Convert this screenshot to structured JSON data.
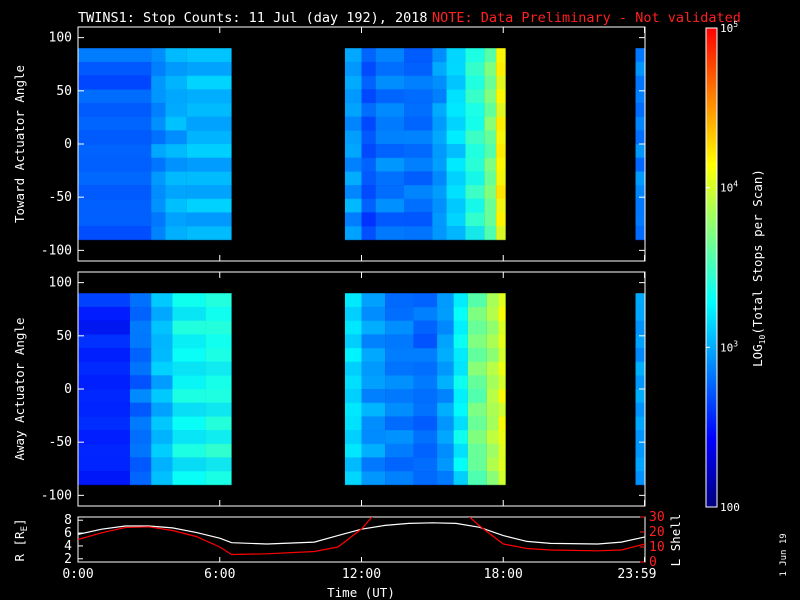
{
  "header": {
    "title": "TWINS1: Stop Counts: 11 Jul (day 192), 2018",
    "note": "NOTE: Data Preliminary - Not validated"
  },
  "colorbar": {
    "label": "LOG10(Total Stops per Scan)",
    "label_prefix": "LOG",
    "label_sub": "10",
    "label_suffix": "(Total Stops per Scan)",
    "ticks": [
      "100",
      "10^3",
      "10^4",
      "10^5"
    ],
    "tick_values": [
      100,
      1000,
      10000,
      100000
    ],
    "range": [
      100,
      100000
    ],
    "scale": "log",
    "colors": [
      "#00007f",
      "#0000ff",
      "#0080ff",
      "#00ffff",
      "#80ff80",
      "#ffff00",
      "#ff8000",
      "#ff0000"
    ]
  },
  "date_stamp": "1 Jun 19",
  "chart_data": [
    {
      "type": "heatmap",
      "ylabel": "Toward Actuator Angle",
      "ylim": [
        -110,
        110
      ],
      "yticks": [
        "100",
        "50",
        "0",
        "-50",
        "-100"
      ],
      "ytick_values": [
        100,
        50,
        0,
        -50,
        -100
      ],
      "xlim": [
        0,
        24
      ],
      "coverage": [
        [
          0,
          6.5
        ],
        [
          11.3,
          18.1
        ],
        [
          23.6,
          24
        ]
      ],
      "angle_range": [
        -90,
        90
      ],
      "columns": [
        {
          "t0": 0.0,
          "t1": 3.1,
          "v": 2.8
        },
        {
          "t0": 3.1,
          "t1": 3.7,
          "v": 2.95
        },
        {
          "t0": 3.7,
          "t1": 4.6,
          "v": 3.05
        },
        {
          "t0": 4.6,
          "t1": 6.5,
          "v": 3.1
        },
        {
          "t0": 11.3,
          "t1": 12.0,
          "v": 3.0
        },
        {
          "t0": 12.0,
          "t1": 12.6,
          "v": 2.75
        },
        {
          "t0": 12.6,
          "t1": 13.8,
          "v": 2.9
        },
        {
          "t0": 13.8,
          "t1": 15.0,
          "v": 2.85
        },
        {
          "t0": 15.0,
          "t1": 15.6,
          "v": 3.0
        },
        {
          "t0": 15.6,
          "t1": 16.4,
          "v": 3.2
        },
        {
          "t0": 16.4,
          "t1": 17.2,
          "v": 3.45
        },
        {
          "t0": 17.2,
          "t1": 17.7,
          "v": 3.7
        },
        {
          "t0": 17.7,
          "t1": 18.1,
          "v": 4.2
        },
        {
          "t0": 23.6,
          "t1": 24.0,
          "v": 2.9
        }
      ]
    },
    {
      "type": "heatmap",
      "ylabel": "Away Actuator Angle",
      "ylim": [
        -110,
        110
      ],
      "yticks": [
        "100",
        "50",
        "0",
        "-50",
        "-100"
      ],
      "ytick_values": [
        100,
        50,
        0,
        -50,
        -100
      ],
      "xlim": [
        0,
        24
      ],
      "coverage": [
        [
          0,
          6.5
        ],
        [
          11.3,
          18.1
        ],
        [
          23.6,
          24
        ]
      ],
      "angle_range": [
        -90,
        90
      ],
      "columns": [
        {
          "t0": 0.0,
          "t1": 2.2,
          "v": 2.6
        },
        {
          "t0": 2.2,
          "t1": 3.1,
          "v": 2.85
        },
        {
          "t0": 3.1,
          "t1": 4.0,
          "v": 3.1
        },
        {
          "t0": 4.0,
          "t1": 5.4,
          "v": 3.35
        },
        {
          "t0": 5.4,
          "t1": 6.5,
          "v": 3.4
        },
        {
          "t0": 11.3,
          "t1": 12.0,
          "v": 3.2
        },
        {
          "t0": 12.0,
          "t1": 13.0,
          "v": 3.0
        },
        {
          "t0": 13.0,
          "t1": 14.2,
          "v": 2.9
        },
        {
          "t0": 14.2,
          "t1": 15.2,
          "v": 2.85
        },
        {
          "t0": 15.2,
          "t1": 15.9,
          "v": 3.0
        },
        {
          "t0": 15.9,
          "t1": 16.5,
          "v": 3.3
        },
        {
          "t0": 16.5,
          "t1": 17.3,
          "v": 3.7
        },
        {
          "t0": 17.3,
          "t1": 17.8,
          "v": 3.9
        },
        {
          "t0": 17.8,
          "t1": 18.1,
          "v": 4.1
        },
        {
          "t0": 23.6,
          "t1": 24.0,
          "v": 3.0
        }
      ]
    },
    {
      "type": "line",
      "xlabel": "Time (UT)",
      "xticks": [
        "0:00",
        "6:00",
        "12:00",
        "18:00",
        "23:59"
      ],
      "xtick_values": [
        0,
        6,
        12,
        18,
        23.98
      ],
      "xlim": [
        0,
        24
      ],
      "ylabel_left": "R [RE]",
      "ylabel_left_main": "R [R",
      "ylabel_left_sub": "E",
      "ylabel_left_end": "]",
      "yticks_left": [
        "2",
        "4",
        "6",
        "8"
      ],
      "ytick_values_left": [
        2,
        4,
        6,
        8
      ],
      "ylim_left": [
        1.5,
        8.5
      ],
      "ylabel_right": "L Shell",
      "yticks_right": [
        "0",
        "10",
        "20",
        "30"
      ],
      "ytick_values_right": [
        0,
        10,
        20,
        30
      ],
      "ylim_right": [
        0,
        30
      ],
      "series": [
        {
          "axis": "left",
          "color": "#ffffff",
          "x": [
            0,
            1,
            2,
            3,
            4,
            5,
            6,
            6.5,
            8,
            10,
            11,
            12,
            13,
            14,
            15,
            16,
            17,
            18,
            19,
            20,
            22,
            23,
            24
          ],
          "y": [
            5.8,
            6.6,
            7.1,
            7.1,
            6.8,
            6.1,
            5.2,
            4.5,
            4.3,
            4.6,
            5.6,
            6.6,
            7.2,
            7.5,
            7.6,
            7.5,
            6.9,
            5.6,
            4.7,
            4.4,
            4.3,
            4.6,
            5.4
          ]
        },
        {
          "axis": "right",
          "color": "#ff0000",
          "x": [
            0,
            1,
            2,
            3,
            4,
            5,
            6,
            6.5,
            8,
            10,
            11,
            12,
            12.5,
            16.5,
            17,
            18,
            19,
            20,
            22,
            23,
            24
          ],
          "y": [
            15,
            19.5,
            23,
            23.5,
            21,
            17,
            10,
            5,
            5.5,
            7,
            10,
            22,
            31,
            31,
            24,
            12,
            9,
            8,
            7.5,
            8,
            12
          ]
        }
      ]
    }
  ]
}
